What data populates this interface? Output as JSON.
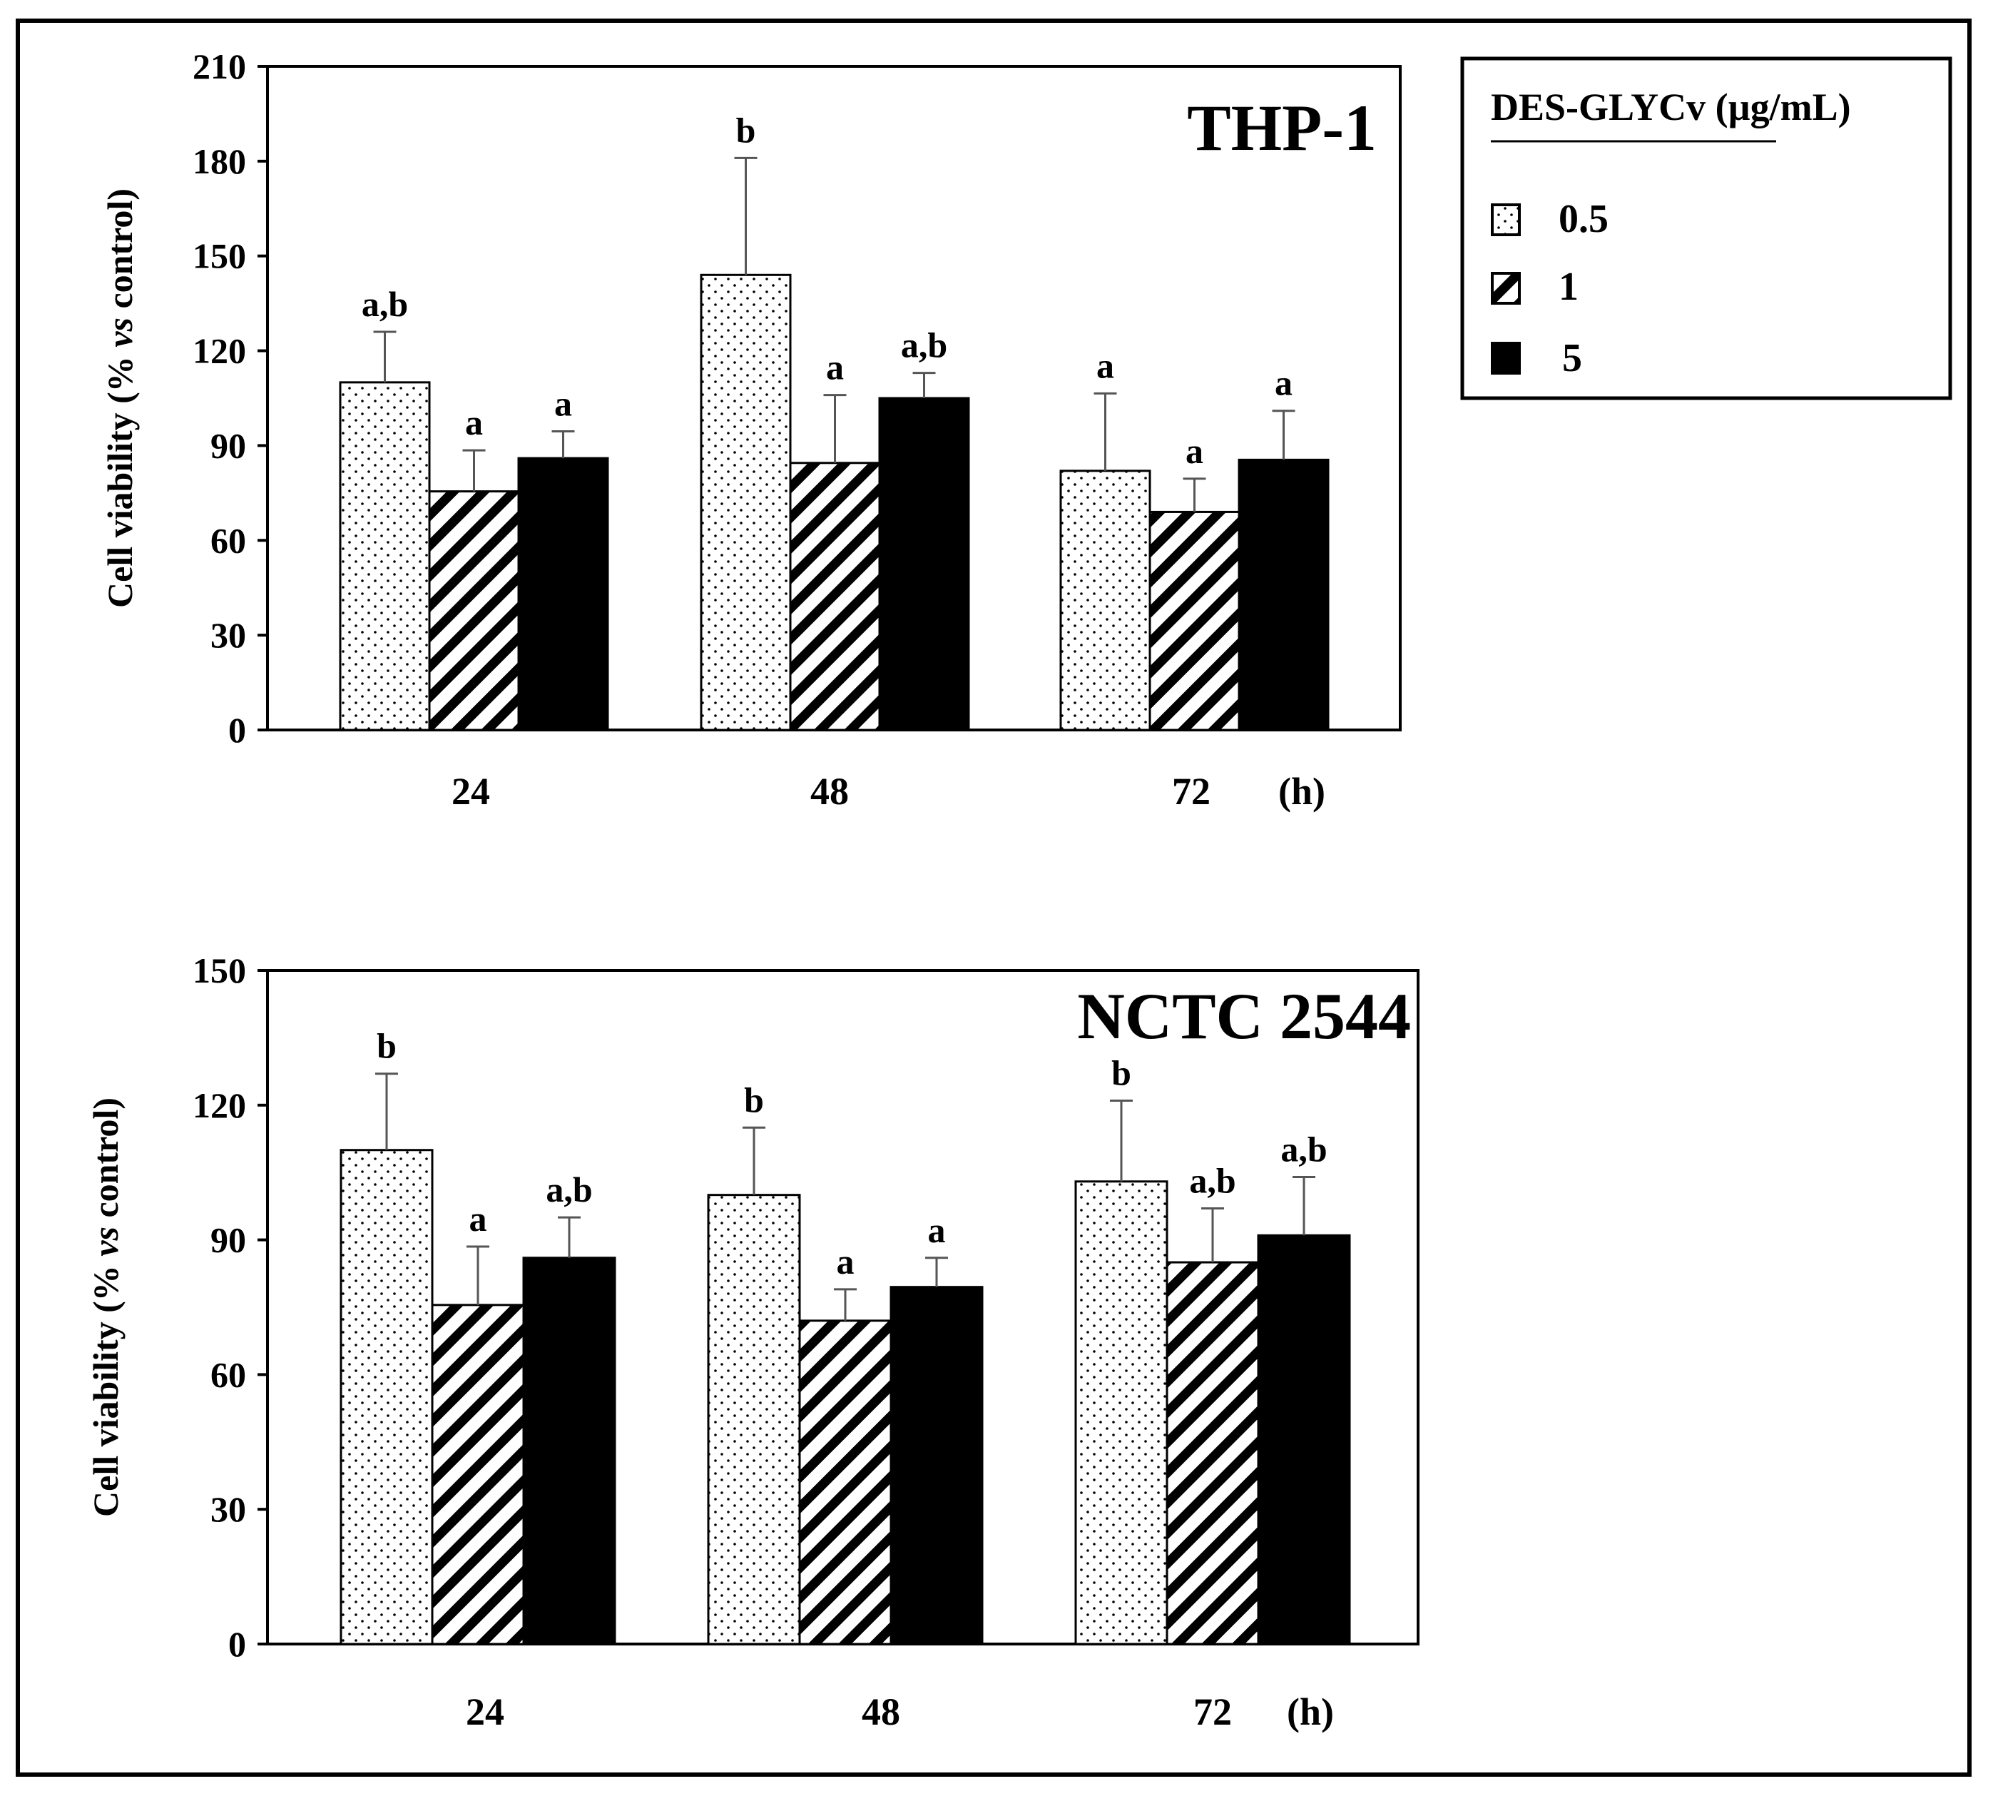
{
  "legend": {
    "title": "DES-GLYCv (µg/mL)",
    "items": [
      {
        "label": "0.5",
        "pattern": "dots"
      },
      {
        "label": "1",
        "pattern": "hatch"
      },
      {
        "label": "5",
        "pattern": "solid"
      }
    ]
  },
  "chart_data": [
    {
      "type": "bar",
      "title": "THP-1",
      "ylabel": "Cell viability (% vs control)",
      "ylabel_parts": [
        "Cell viability (% ",
        "vs",
        " control)"
      ],
      "xunit": "(h)",
      "categories": [
        "24",
        "48",
        "72"
      ],
      "ylim": [
        0,
        210
      ],
      "yticks": [
        0,
        30,
        60,
        90,
        120,
        150,
        180,
        210
      ],
      "series": [
        {
          "name": "0.5",
          "values": [
            110,
            144,
            82
          ],
          "errors": [
            16,
            37,
            24.5
          ],
          "labels": [
            "a,b",
            "b",
            "a"
          ]
        },
        {
          "name": "1",
          "values": [
            75.5,
            84.5,
            69
          ],
          "errors": [
            13,
            21.5,
            10.5
          ],
          "labels": [
            "a",
            "a",
            "a"
          ]
        },
        {
          "name": "5",
          "values": [
            86,
            105,
            85.5
          ],
          "errors": [
            8.5,
            8,
            15.5
          ],
          "labels": [
            "a",
            "a,b",
            "a"
          ]
        }
      ]
    },
    {
      "type": "bar",
      "title": "NCTC 2544",
      "ylabel": "Cell viability (% vs control)",
      "ylabel_parts": [
        "Cell viability (% ",
        "vs",
        " control)"
      ],
      "xunit": "(h)",
      "categories": [
        "24",
        "48",
        "72"
      ],
      "ylim": [
        0,
        150
      ],
      "yticks": [
        0,
        30,
        60,
        90,
        120,
        150
      ],
      "series": [
        {
          "name": "0.5",
          "values": [
            110,
            100,
            103
          ],
          "errors": [
            17,
            15,
            18
          ],
          "labels": [
            "b",
            "b",
            "b"
          ]
        },
        {
          "name": "1",
          "values": [
            75.5,
            72,
            85
          ],
          "errors": [
            13,
            7,
            12
          ],
          "labels": [
            "a",
            "a",
            "a,b"
          ]
        },
        {
          "name": "5",
          "values": [
            86,
            79.5,
            91
          ],
          "errors": [
            9,
            6.5,
            13
          ],
          "labels": [
            "a,b",
            "a",
            "a,b"
          ]
        }
      ]
    }
  ]
}
